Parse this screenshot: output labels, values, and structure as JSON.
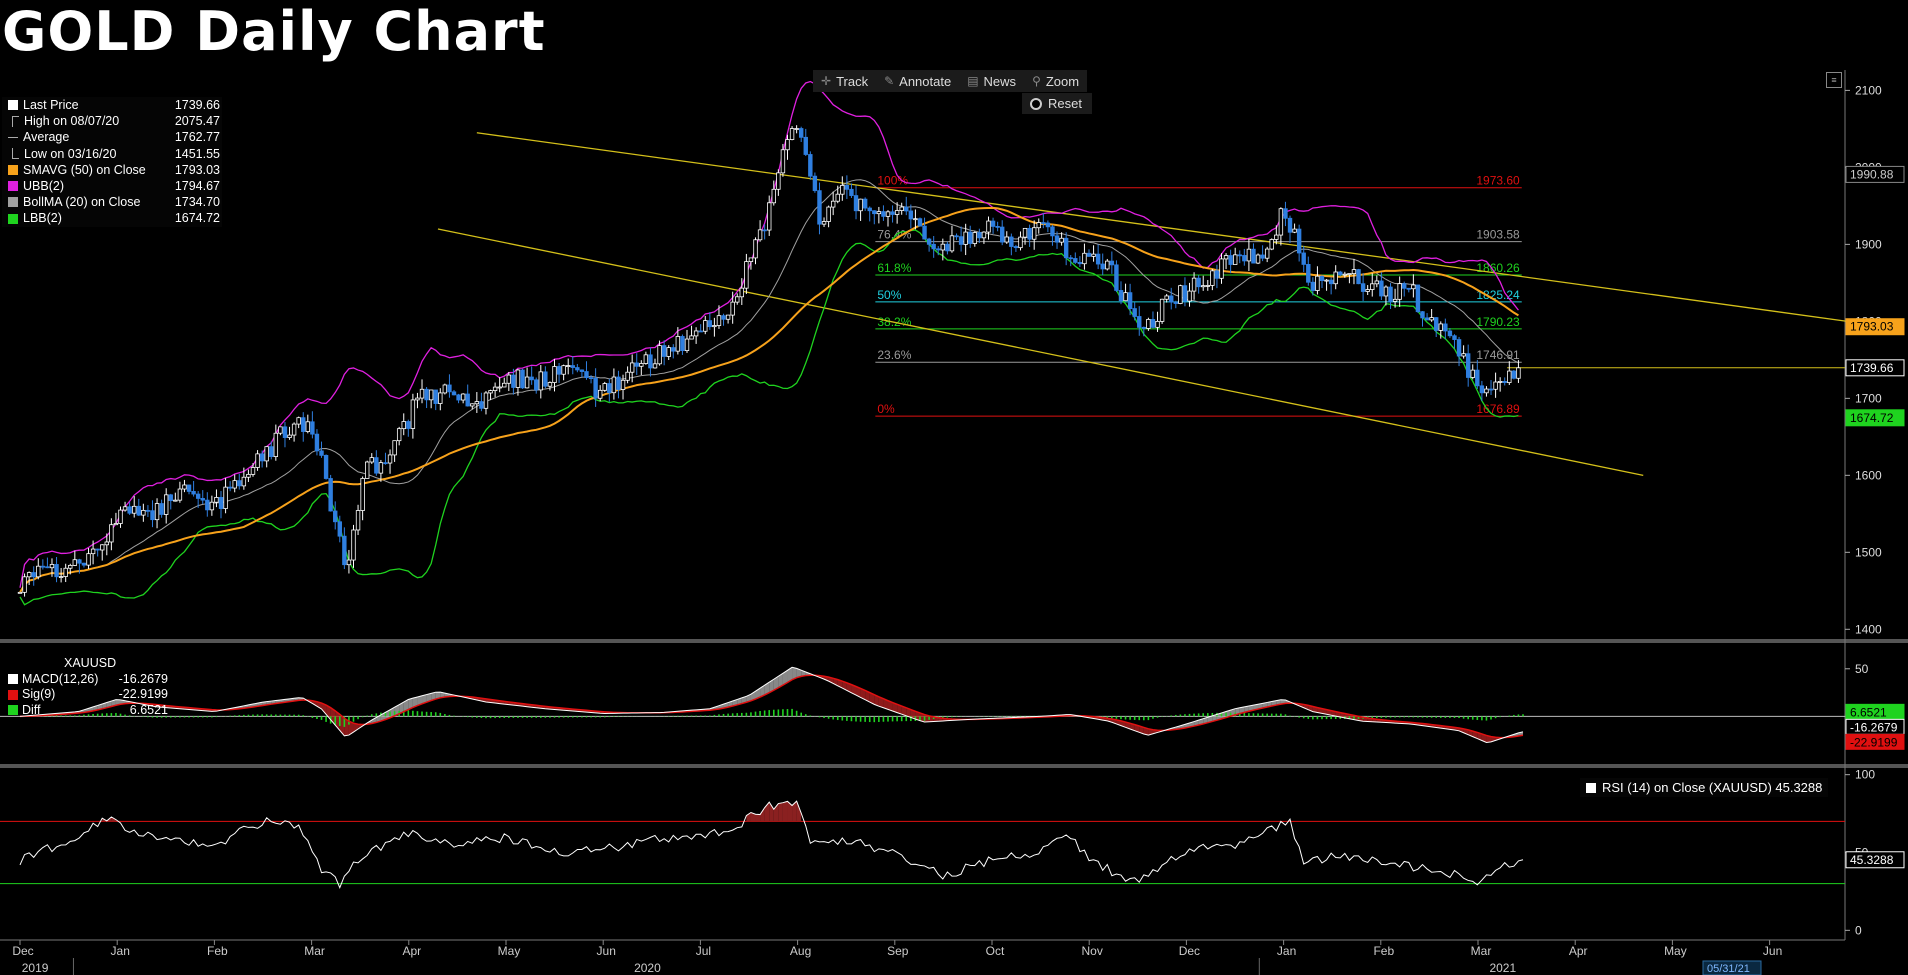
{
  "title": "GOLD Daily Chart",
  "toolbar": {
    "items": [
      {
        "label": "Track",
        "icon": "crosshair-icon"
      },
      {
        "label": "Annotate",
        "icon": "pencil-icon"
      },
      {
        "label": "News",
        "icon": "news-icon"
      },
      {
        "label": "Zoom",
        "icon": "magnifier-icon"
      }
    ],
    "reset_label": "Reset"
  },
  "legend": [
    {
      "label": "Last Price",
      "value": "1739.66",
      "color": "#ffffff",
      "marker": "box"
    },
    {
      "label": "High on 08/07/20",
      "value": "2075.47",
      "color": "#aaaaaa",
      "marker": "high"
    },
    {
      "label": "Average",
      "value": "1762.77",
      "color": "#aaaaaa",
      "marker": "avg"
    },
    {
      "label": "Low on 03/16/20",
      "value": "1451.55",
      "color": "#aaaaaa",
      "marker": "low"
    },
    {
      "label": "SMAVG (50)  on Close",
      "value": "1793.03",
      "color": "#f7a21b",
      "marker": "box"
    },
    {
      "label": "UBB(2)",
      "value": "1794.67",
      "color": "#e020e0",
      "marker": "box"
    },
    {
      "label": "BollMA (20)  on Close",
      "value": "1734.70",
      "color": "#a0a0a0",
      "marker": "box"
    },
    {
      "label": "LBB(2)",
      "value": "1674.72",
      "color": "#1fd31f",
      "marker": "box"
    }
  ],
  "macd_legend": {
    "symbol": "XAUUSD",
    "rows": [
      {
        "label": "MACD(12,26)",
        "value": "-16.2679",
        "color": "#ffffff"
      },
      {
        "label": "Sig(9)",
        "value": "-22.9199",
        "color": "#e01010"
      },
      {
        "label": "Diff",
        "value": "6.6521",
        "color": "#1fd31f"
      }
    ]
  },
  "rsi_legend": "RSI (14)  on Close (XAUUSD) 45.3288",
  "right_tags": [
    {
      "text": "1990.88",
      "bg": "#000000",
      "fg": "#cccccc",
      "border": "#888888",
      "value": 1990.88
    },
    {
      "text": "1793.03",
      "bg": "#f7a21b",
      "fg": "#000000",
      "border": "#f7a21b",
      "value": 1793.03
    },
    {
      "text": "1739.66",
      "bg": "#000000",
      "fg": "#ffffff",
      "border": "#ffffff",
      "value": 1739.66
    },
    {
      "text": "1674.72",
      "bg": "#1fd31f",
      "fg": "#000000",
      "border": "#1fd31f",
      "value": 1674.72
    }
  ],
  "macd_tags": [
    {
      "text": "6.6521",
      "bg": "#1fd31f",
      "fg": "#000000",
      "value": 6.6521
    },
    {
      "text": "-16.2679",
      "bg": "#000000",
      "fg": "#ffffff",
      "value": -16.2679
    },
    {
      "text": "-22.9199",
      "bg": "#e01010",
      "fg": "#000000",
      "value": -22.9199
    }
  ],
  "rsi_tag": {
    "text": "45.3288",
    "value": 45.3288
  },
  "date_tag": "05/31/21",
  "colors": {
    "price_up": "#ffffff",
    "price_down": "#2f7fe0",
    "sma50": "#f7a21b",
    "ubb": "#e020e0",
    "bollma": "#a0a0a0",
    "lbb": "#1fd31f",
    "channel": "#d4c01a",
    "fib_red": "#e01010",
    "fib_gray": "#9a9a9a",
    "fib_green": "#1fd31f",
    "fib_cyan": "#20d0e0",
    "macd": "#ffffff",
    "signal": "#e01010",
    "hist": "#1fd31f",
    "rsi": "#ffffff",
    "rsi_upper": "#e01010",
    "rsi_lower": "#1fd31f"
  },
  "chart_data": [
    {
      "type": "candlestick",
      "title": "GOLD Daily Chart",
      "y_ticks": [
        1400,
        1500,
        1600,
        1700,
        1800,
        1900,
        2000,
        2100
      ],
      "ylim": [
        1390,
        2120
      ],
      "x_months": [
        "Dec",
        "Jan",
        "Feb",
        "Mar",
        "Apr",
        "May",
        "Jun",
        "Jul",
        "Aug",
        "Sep",
        "Oct",
        "Nov",
        "Dec",
        "Jan",
        "Feb",
        "Mar",
        "Apr",
        "May",
        "Jun"
      ],
      "x_years": [
        "2019",
        "2020",
        "2021"
      ],
      "price_path": [
        {
          "m": 0.0,
          "v": 1462
        },
        {
          "m": 0.5,
          "v": 1480
        },
        {
          "m": 0.9,
          "v": 1520
        },
        {
          "m": 1.1,
          "v": 1560
        },
        {
          "m": 1.4,
          "v": 1555
        },
        {
          "m": 1.7,
          "v": 1575
        },
        {
          "m": 2.0,
          "v": 1565
        },
        {
          "m": 2.3,
          "v": 1590
        },
        {
          "m": 2.6,
          "v": 1640
        },
        {
          "m": 2.85,
          "v": 1675
        },
        {
          "m": 3.05,
          "v": 1640
        },
        {
          "m": 3.2,
          "v": 1560
        },
        {
          "m": 3.35,
          "v": 1480
        },
        {
          "m": 3.55,
          "v": 1610
        },
        {
          "m": 3.8,
          "v": 1620
        },
        {
          "m": 4.1,
          "v": 1700
        },
        {
          "m": 4.4,
          "v": 1710
        },
        {
          "m": 4.7,
          "v": 1690
        },
        {
          "m": 5.0,
          "v": 1730
        },
        {
          "m": 5.3,
          "v": 1720
        },
        {
          "m": 5.6,
          "v": 1735
        },
        {
          "m": 6.0,
          "v": 1705
        },
        {
          "m": 6.3,
          "v": 1735
        },
        {
          "m": 6.6,
          "v": 1760
        },
        {
          "m": 7.0,
          "v": 1785
        },
        {
          "m": 7.3,
          "v": 1810
        },
        {
          "m": 7.5,
          "v": 1880
        },
        {
          "m": 7.75,
          "v": 1960
        },
        {
          "m": 7.95,
          "v": 2060
        },
        {
          "m": 8.05,
          "v": 2030
        },
        {
          "m": 8.25,
          "v": 1920
        },
        {
          "m": 8.45,
          "v": 1970
        },
        {
          "m": 8.8,
          "v": 1940
        },
        {
          "m": 9.1,
          "v": 1950
        },
        {
          "m": 9.35,
          "v": 1890
        },
        {
          "m": 9.6,
          "v": 1900
        },
        {
          "m": 9.9,
          "v": 1920
        },
        {
          "m": 10.2,
          "v": 1905
        },
        {
          "m": 10.55,
          "v": 1925
        },
        {
          "m": 10.8,
          "v": 1880
        },
        {
          "m": 11.2,
          "v": 1870
        },
        {
          "m": 11.5,
          "v": 1790
        },
        {
          "m": 11.75,
          "v": 1815
        },
        {
          "m": 12.1,
          "v": 1850
        },
        {
          "m": 12.4,
          "v": 1875
        },
        {
          "m": 12.8,
          "v": 1885
        },
        {
          "m": 13.0,
          "v": 1945
        },
        {
          "m": 13.1,
          "v": 1915
        },
        {
          "m": 13.3,
          "v": 1845
        },
        {
          "m": 13.6,
          "v": 1860
        },
        {
          "m": 13.9,
          "v": 1850
        },
        {
          "m": 14.1,
          "v": 1830
        },
        {
          "m": 14.3,
          "v": 1845
        },
        {
          "m": 14.5,
          "v": 1800
        },
        {
          "m": 14.7,
          "v": 1785
        },
        {
          "m": 14.9,
          "v": 1735
        },
        {
          "m": 15.05,
          "v": 1700
        },
        {
          "m": 15.15,
          "v": 1710
        },
        {
          "m": 15.35,
          "v": 1738
        },
        {
          "m": 15.45,
          "v": 1740
        }
      ],
      "fib_levels": [
        {
          "label": "100%",
          "pct": 100,
          "value": 1973.6,
          "value_text": "1973.60",
          "color": "#e01010"
        },
        {
          "label": "76.4%",
          "pct": 76.4,
          "value": 1903.58,
          "value_text": "1903.58",
          "color": "#9a9a9a"
        },
        {
          "label": "61.8%",
          "pct": 61.8,
          "value": 1860.26,
          "value_text": "1860.26",
          "color": "#1fd31f"
        },
        {
          "label": "50%",
          "pct": 50,
          "value": 1825.24,
          "value_text": "1825.24",
          "color": "#20d0e0"
        },
        {
          "label": "38.2%",
          "pct": 38.2,
          "value": 1790.23,
          "value_text": "1790.23",
          "color": "#1fd31f"
        },
        {
          "label": "23.6%",
          "pct": 23.6,
          "value": 1746.91,
          "value_text": "1746.91",
          "color": "#9a9a9a"
        },
        {
          "label": "0%",
          "pct": 0,
          "value": 1676.89,
          "value_text": "1676.89",
          "color": "#e01010"
        }
      ],
      "channel_lines": [
        {
          "from": {
            "m": 4.7,
            "v": 2045
          },
          "to": {
            "m": 18.8,
            "v": 1800
          }
        },
        {
          "from": {
            "m": 4.3,
            "v": 1920
          },
          "to": {
            "m": 16.7,
            "v": 1600
          }
        }
      ],
      "last_price": 1739.66
    },
    {
      "type": "macd",
      "y_ticks": [
        50,
        0
      ],
      "ylim": [
        -48,
        75
      ],
      "path": [
        {
          "m": 0.0,
          "v": 0
        },
        {
          "m": 0.6,
          "v": 5
        },
        {
          "m": 1.0,
          "v": 18
        },
        {
          "m": 1.4,
          "v": 10
        },
        {
          "m": 2.0,
          "v": 5
        },
        {
          "m": 2.5,
          "v": 15
        },
        {
          "m": 2.9,
          "v": 20
        },
        {
          "m": 3.1,
          "v": 8
        },
        {
          "m": 3.35,
          "v": -22
        },
        {
          "m": 3.6,
          "v": -5
        },
        {
          "m": 4.0,
          "v": 18
        },
        {
          "m": 4.3,
          "v": 26
        },
        {
          "m": 4.8,
          "v": 15
        },
        {
          "m": 5.4,
          "v": 8
        },
        {
          "m": 6.0,
          "v": 3
        },
        {
          "m": 6.6,
          "v": 4
        },
        {
          "m": 7.1,
          "v": 8
        },
        {
          "m": 7.5,
          "v": 22
        },
        {
          "m": 7.95,
          "v": 52
        },
        {
          "m": 8.3,
          "v": 38
        },
        {
          "m": 8.8,
          "v": 12
        },
        {
          "m": 9.3,
          "v": -6
        },
        {
          "m": 9.8,
          "v": -3
        },
        {
          "m": 10.5,
          "v": 0
        },
        {
          "m": 10.8,
          "v": 2
        },
        {
          "m": 11.2,
          "v": -5
        },
        {
          "m": 11.6,
          "v": -20
        },
        {
          "m": 12.0,
          "v": -8
        },
        {
          "m": 12.5,
          "v": 8
        },
        {
          "m": 13.0,
          "v": 18
        },
        {
          "m": 13.3,
          "v": 5
        },
        {
          "m": 13.8,
          "v": -5
        },
        {
          "m": 14.3,
          "v": -8
        },
        {
          "m": 14.8,
          "v": -15
        },
        {
          "m": 15.1,
          "v": -28
        },
        {
          "m": 15.45,
          "v": -16.27
        }
      ]
    },
    {
      "type": "rsi",
      "y_ticks": [
        100,
        50,
        0
      ],
      "ylim": [
        -3,
        103
      ],
      "upper_band": 70,
      "lower_band": 30,
      "path": [
        {
          "m": 0.0,
          "v": 45
        },
        {
          "m": 0.5,
          "v": 58
        },
        {
          "m": 0.9,
          "v": 73
        },
        {
          "m": 1.1,
          "v": 65
        },
        {
          "m": 1.5,
          "v": 60
        },
        {
          "m": 2.0,
          "v": 55
        },
        {
          "m": 2.5,
          "v": 70
        },
        {
          "m": 2.85,
          "v": 68
        },
        {
          "m": 3.1,
          "v": 38
        },
        {
          "m": 3.3,
          "v": 30
        },
        {
          "m": 3.5,
          "v": 48
        },
        {
          "m": 4.0,
          "v": 62
        },
        {
          "m": 4.5,
          "v": 55
        },
        {
          "m": 5.0,
          "v": 60
        },
        {
          "m": 5.5,
          "v": 50
        },
        {
          "m": 6.0,
          "v": 52
        },
        {
          "m": 6.5,
          "v": 58
        },
        {
          "m": 7.0,
          "v": 60
        },
        {
          "m": 7.4,
          "v": 68
        },
        {
          "m": 7.7,
          "v": 80
        },
        {
          "m": 8.0,
          "v": 82
        },
        {
          "m": 8.15,
          "v": 55
        },
        {
          "m": 8.5,
          "v": 58
        },
        {
          "m": 9.0,
          "v": 50
        },
        {
          "m": 9.5,
          "v": 35
        },
        {
          "m": 10.0,
          "v": 45
        },
        {
          "m": 10.5,
          "v": 50
        },
        {
          "m": 10.8,
          "v": 62
        },
        {
          "m": 11.0,
          "v": 45
        },
        {
          "m": 11.5,
          "v": 30
        },
        {
          "m": 12.0,
          "v": 52
        },
        {
          "m": 12.5,
          "v": 55
        },
        {
          "m": 12.9,
          "v": 65
        },
        {
          "m": 13.05,
          "v": 72
        },
        {
          "m": 13.2,
          "v": 45
        },
        {
          "m": 13.7,
          "v": 48
        },
        {
          "m": 14.1,
          "v": 42
        },
        {
          "m": 14.5,
          "v": 40
        },
        {
          "m": 14.8,
          "v": 35
        },
        {
          "m": 15.0,
          "v": 28
        },
        {
          "m": 15.2,
          "v": 40
        },
        {
          "m": 15.45,
          "v": 45.33
        }
      ]
    }
  ]
}
